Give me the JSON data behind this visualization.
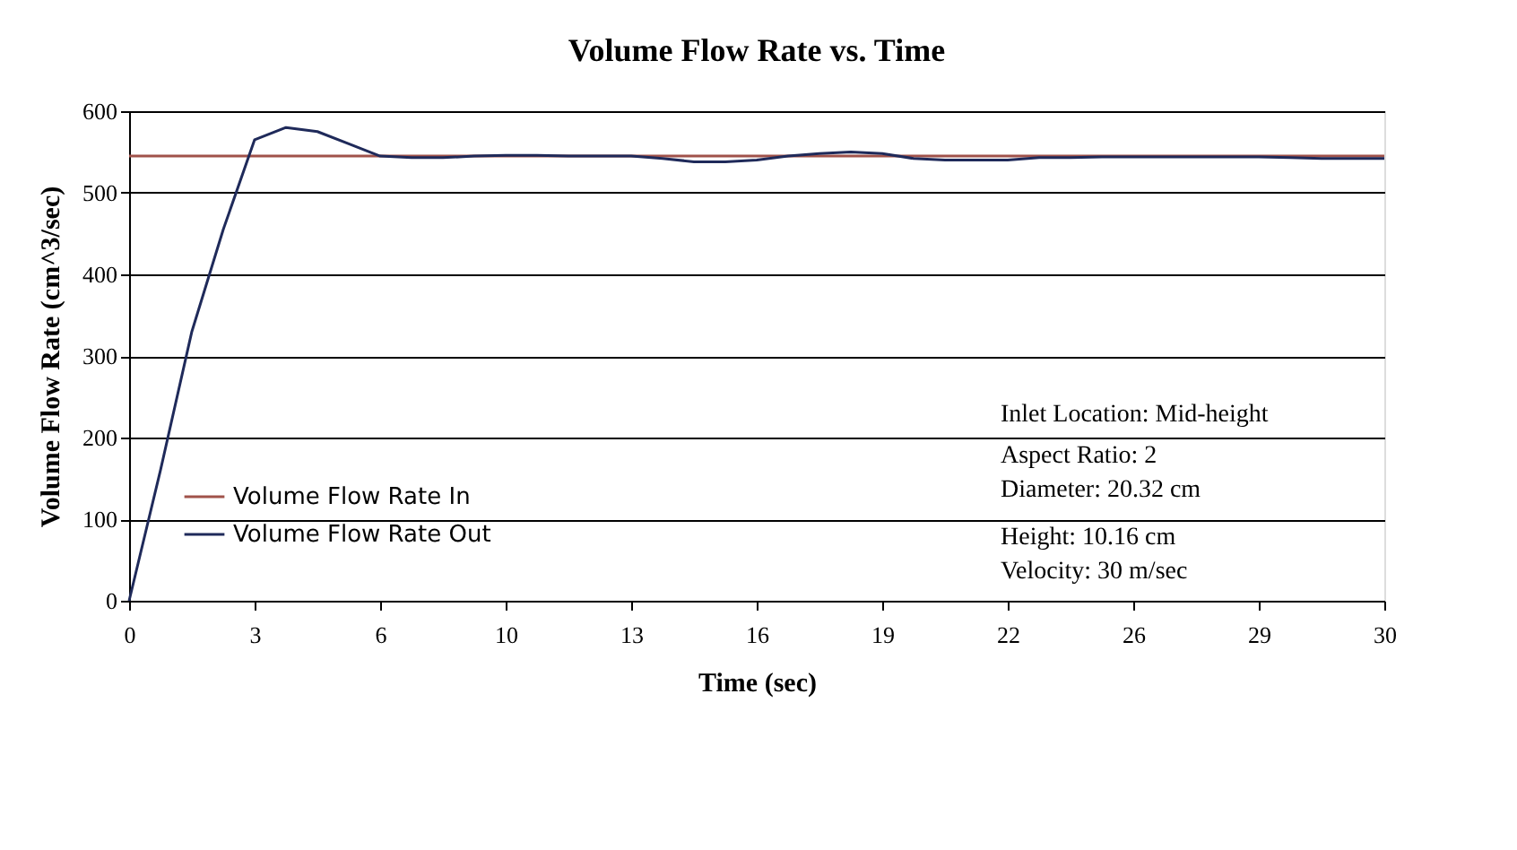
{
  "chart_data": {
    "type": "line",
    "title": "Volume Flow Rate vs. Time",
    "xlabel": "Time (sec)",
    "ylabel": "Volume Flow Rate (cm^3/sec)",
    "categories": [
      "0",
      null,
      null,
      null,
      "3",
      null,
      null,
      null,
      "6",
      null,
      null,
      null,
      "10",
      null,
      null,
      null,
      "13",
      null,
      null,
      null,
      "16",
      null,
      null,
      null,
      "19",
      null,
      null,
      null,
      "22",
      null,
      null,
      null,
      "26",
      null,
      null,
      null,
      "29",
      null,
      null,
      null,
      "30"
    ],
    "series": [
      {
        "name": "Volume Flow Rate In",
        "color": "#a0524a",
        "values": [
          545,
          545,
          545,
          545,
          545,
          545,
          545,
          545,
          545,
          545,
          545,
          545,
          545,
          545,
          545,
          545,
          545,
          545,
          545,
          545,
          545,
          545,
          545,
          545,
          545,
          545,
          545,
          545,
          545,
          545,
          545,
          545,
          545,
          545,
          545,
          545,
          545,
          545,
          545,
          545,
          545
        ]
      },
      {
        "name": "Volume Flow Rate Out",
        "color": "#1f2a5a",
        "values": [
          0,
          160,
          330,
          455,
          565,
          580,
          575,
          560,
          545,
          543,
          543,
          545,
          546,
          546,
          545,
          545,
          545,
          542,
          538,
          538,
          540,
          545,
          548,
          550,
          548,
          542,
          540,
          540,
          540,
          543,
          543,
          544,
          544,
          544,
          544,
          544,
          544,
          543,
          542,
          542,
          542
        ]
      }
    ],
    "ylim": [
      0,
      600
    ],
    "yticks": [
      0,
      100,
      200,
      300,
      400,
      500,
      600
    ],
    "grid": "y",
    "legend": "bottom left",
    "annotations": [
      "Inlet Location: Mid-height",
      "Aspect Ratio: 2",
      "Diameter: 20.32 cm",
      "Height: 10.16 cm",
      "Velocity: 30 m/sec"
    ]
  }
}
